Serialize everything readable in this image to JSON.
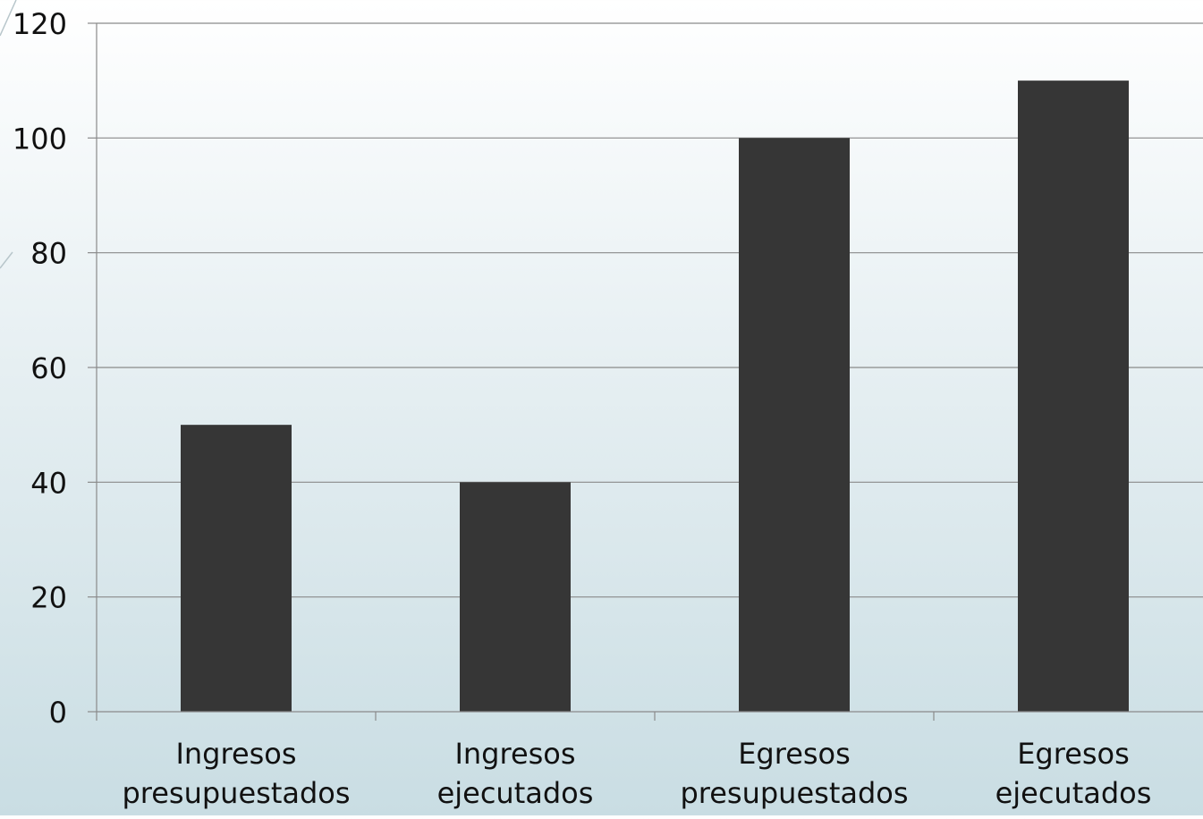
{
  "chart_data": {
    "type": "bar",
    "categories": [
      [
        "Ingresos",
        "presupuestados"
      ],
      [
        "Ingresos",
        "ejecutados"
      ],
      [
        "Egresos",
        "presupuestados"
      ],
      [
        "Egresos",
        "ejecutados"
      ]
    ],
    "values": [
      50,
      40,
      100,
      110
    ],
    "ylim": [
      0,
      120
    ],
    "yticks": [
      0,
      20,
      40,
      60,
      80,
      100,
      120
    ],
    "grid": true,
    "legend": "none",
    "title": "",
    "xlabel": "",
    "ylabel": "",
    "bar_color": "#363636",
    "grid_color": "#8a8a8a"
  }
}
